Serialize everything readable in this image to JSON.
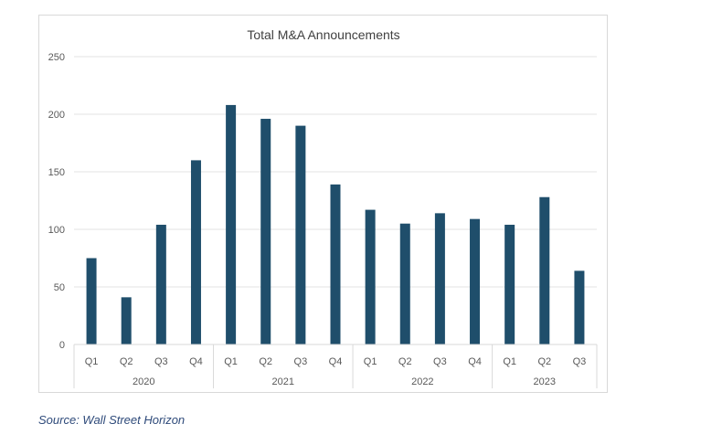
{
  "chart_data": {
    "type": "bar",
    "title": "Total M&A Announcements",
    "xlabel": "",
    "ylabel": "",
    "categories": [
      "Q1",
      "Q2",
      "Q3",
      "Q4",
      "Q1",
      "Q2",
      "Q3",
      "Q4",
      "Q1",
      "Q2",
      "Q3",
      "Q4",
      "Q1",
      "Q2",
      "Q3"
    ],
    "groups": [
      {
        "label": "2020",
        "count": 4
      },
      {
        "label": "2021",
        "count": 4
      },
      {
        "label": "2022",
        "count": 4
      },
      {
        "label": "2023",
        "count": 3
      }
    ],
    "values": [
      75,
      41,
      104,
      160,
      208,
      196,
      190,
      139,
      117,
      105,
      114,
      109,
      104,
      128,
      64
    ],
    "ylim": [
      0,
      250
    ],
    "yticks": [
      0,
      50,
      100,
      150,
      200,
      250
    ],
    "grid": true,
    "legend": "none",
    "bar_color": "#1f4e6b"
  },
  "source_note": "Source: Wall Street Horizon"
}
